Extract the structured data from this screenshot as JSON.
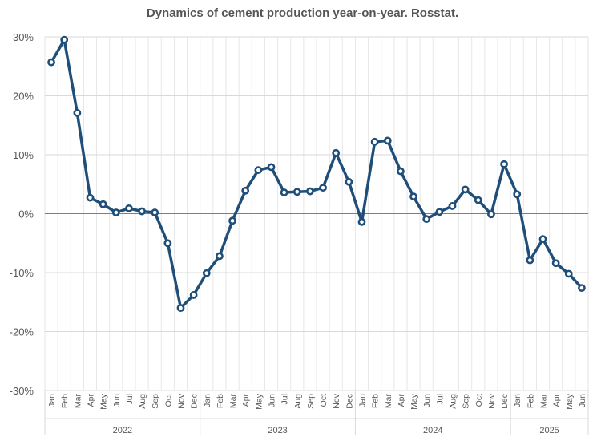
{
  "chart_data": {
    "type": "line",
    "title": "Dynamics of cement production year-on-year. Rosstat.",
    "xlabel": "",
    "ylabel": "",
    "ylim": [
      -30,
      30
    ],
    "y_ticks": [
      30,
      20,
      10,
      0,
      -10,
      -20,
      -30
    ],
    "y_tick_labels": [
      "30%",
      "20%",
      "10%",
      "0%",
      "-10%",
      "-20%",
      "-30%"
    ],
    "grid": true,
    "legend": "none",
    "line_color": "#1F4E79",
    "groups": [
      {
        "year": "2022",
        "months": [
          "Jan",
          "Feb",
          "Mar",
          "Apr",
          "May",
          "Jun",
          "Jul",
          "Aug",
          "Sep",
          "Oct",
          "Nov",
          "Dec"
        ]
      },
      {
        "year": "2023",
        "months": [
          "Jan",
          "Feb",
          "Mar",
          "Apr",
          "May",
          "Jun",
          "Jul",
          "Aug",
          "Sep",
          "Oct",
          "Nov",
          "Dec"
        ]
      },
      {
        "year": "2024",
        "months": [
          "Jan",
          "Feb",
          "Mar",
          "Apr",
          "May",
          "Jun",
          "Jul",
          "Aug",
          "Sep",
          "Oct",
          "Nov",
          "Dec"
        ]
      },
      {
        "year": "2025",
        "months": [
          "Jan",
          "Feb",
          "Mar",
          "Apr",
          "May",
          "Jun"
        ]
      }
    ],
    "series": [
      {
        "name": "Cement production y/y",
        "values": [
          25.7,
          29.5,
          17.1,
          2.7,
          1.6,
          0.2,
          0.9,
          0.4,
          0.2,
          -5.0,
          -16.0,
          -13.8,
          -10.1,
          -7.2,
          -1.2,
          3.9,
          7.4,
          7.9,
          3.6,
          3.7,
          3.8,
          4.4,
          10.3,
          5.4,
          -1.4,
          12.2,
          12.4,
          7.2,
          2.9,
          -0.9,
          0.3,
          1.3,
          4.1,
          2.3,
          -0.1,
          8.4,
          3.3,
          -7.9,
          -4.3,
          -8.4,
          -10.2,
          -12.6
        ]
      }
    ]
  }
}
